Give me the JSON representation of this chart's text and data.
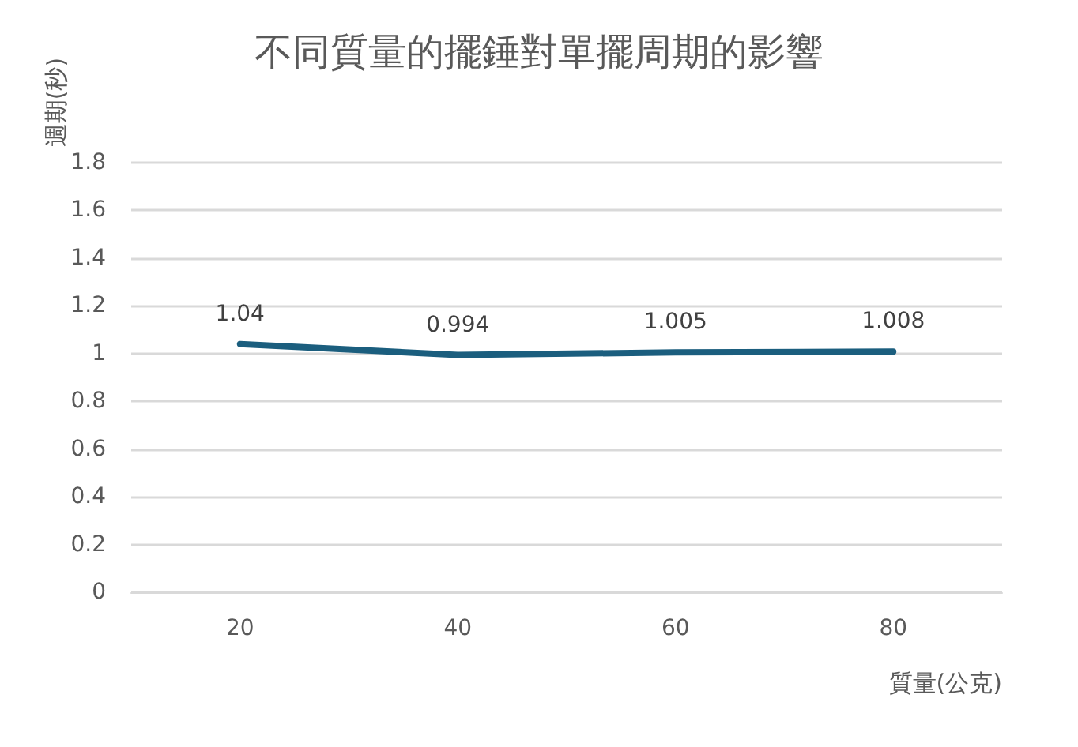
{
  "chart_data": {
    "type": "line",
    "title": "不同質量的擺錘對單擺周期的影響",
    "xlabel": "質量(公克)",
    "ylabel": "週期(秒)",
    "categories": [
      "20",
      "40",
      "60",
      "80"
    ],
    "series": [
      {
        "color": "#1b5e7e",
        "values": [
          1.04,
          0.994,
          1.005,
          1.008
        ]
      }
    ],
    "ylim": [
      0,
      1.8
    ],
    "yticks": [
      0,
      0.2,
      0.4,
      0.6,
      0.8,
      1,
      1.2,
      1.4,
      1.6,
      1.8
    ],
    "grid": "y",
    "marker": "none",
    "line_style": "solid",
    "data_labels": true
  }
}
